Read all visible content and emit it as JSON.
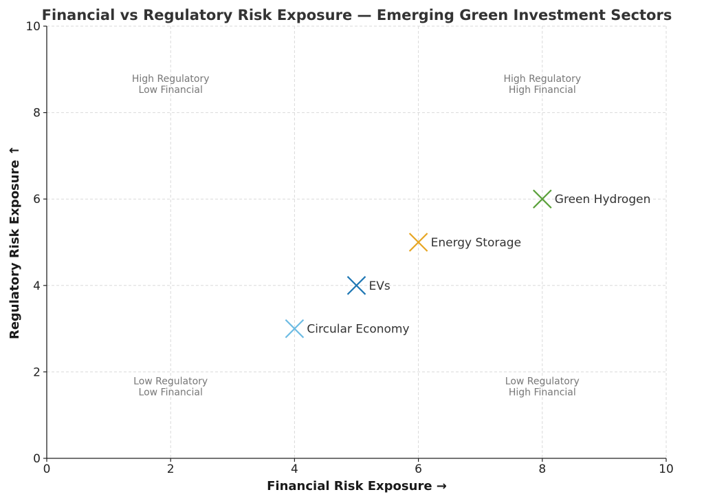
{
  "chart_data": {
    "type": "scatter",
    "title": "Financial vs Regulatory Risk Exposure — Emerging Green Investment Sectors",
    "xlabel": "Financial Risk Exposure →",
    "ylabel": "Regulatory Risk Exposure ↑",
    "xlim": [
      0,
      10
    ],
    "ylim": [
      0,
      10
    ],
    "xticks": [
      "0",
      "2",
      "4",
      "6",
      "8",
      "10"
    ],
    "yticks": [
      "0",
      "2",
      "4",
      "6",
      "8",
      "10"
    ],
    "grid": true,
    "marker": "x",
    "points": [
      {
        "name": "EVs",
        "x": 5,
        "y": 4,
        "color": "#1f77b4"
      },
      {
        "name": "Green Hydrogen",
        "x": 8,
        "y": 6,
        "color": "#5aa03a"
      },
      {
        "name": "Energy Storage",
        "x": 6,
        "y": 5,
        "color": "#e6a521"
      },
      {
        "name": "Circular Economy",
        "x": 4,
        "y": 3,
        "color": "#6cbbe3"
      }
    ],
    "quadrant_labels": [
      {
        "lines": [
          "High Regulatory",
          "Low Financial"
        ],
        "x": 2,
        "y": 8.6
      },
      {
        "lines": [
          "High Regulatory",
          "High Financial"
        ],
        "x": 8,
        "y": 8.6
      },
      {
        "lines": [
          "Low Regulatory",
          "Low Financial"
        ],
        "x": 2,
        "y": 1.6
      },
      {
        "lines": [
          "Low Regulatory",
          "High Financial"
        ],
        "x": 8,
        "y": 1.6
      }
    ]
  }
}
